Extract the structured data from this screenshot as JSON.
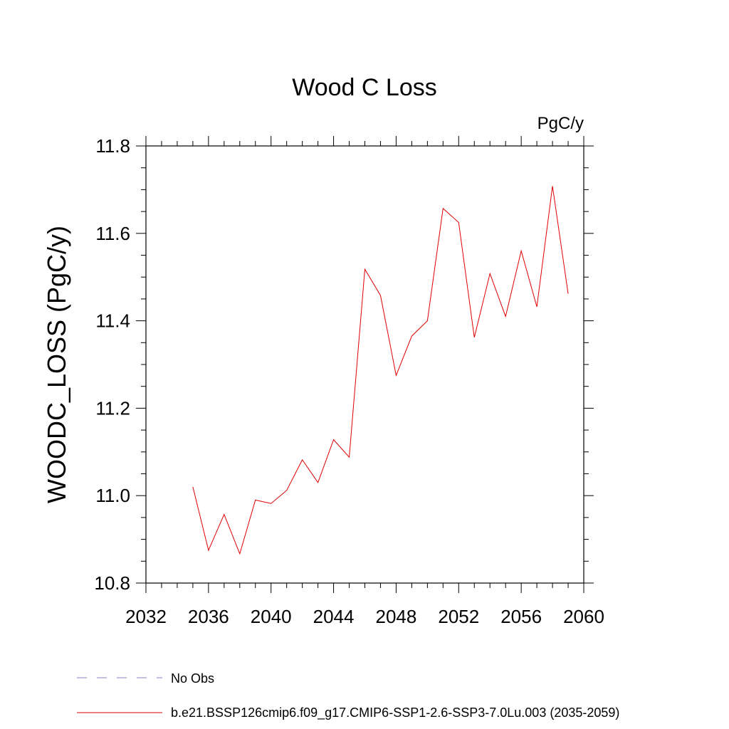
{
  "chart_data": {
    "type": "line",
    "title": "Wood C Loss",
    "units_label": "PgC/y",
    "ylabel": "WOODC_LOSS  (PgC/y)",
    "xlabel": "",
    "xlim": [
      2032,
      2060
    ],
    "ylim": [
      10.8,
      11.8
    ],
    "x_major_ticks": [
      2032,
      2036,
      2040,
      2044,
      2048,
      2052,
      2056,
      2060
    ],
    "x_minor_step": 1,
    "y_major_ticks": [
      10.8,
      11.0,
      11.2,
      11.4,
      11.6,
      11.8
    ],
    "y_tick_labels": [
      "10.8",
      "11.0",
      "11.2",
      "11.4",
      "11.6",
      "11.8"
    ],
    "y_minor_step": 0.05,
    "grid": false,
    "legend_position": "bottom",
    "legend": [
      {
        "label": "No Obs",
        "color": "#8080c0",
        "style": "dashed"
      },
      {
        "label": "b.e21.BSSP126cmip6.f09_g17.CMIP6-SSP1-2.6-SSP3-7.0Lu.003 (2035-2059)",
        "color": "#e00000",
        "style": "solid"
      }
    ],
    "series": [
      {
        "color": "#e00000",
        "x": [
          2035,
          2036,
          2037,
          2038,
          2039,
          2040,
          2041,
          2042,
          2043,
          2044,
          2045,
          2046,
          2047,
          2048,
          2049,
          2050,
          2051,
          2052,
          2053,
          2054,
          2055,
          2056,
          2057,
          2058,
          2059
        ],
        "y": [
          11.02,
          10.875,
          10.957,
          10.867,
          10.99,
          10.982,
          11.012,
          11.082,
          11.03,
          11.128,
          11.088,
          11.518,
          11.458,
          11.275,
          11.365,
          11.4,
          11.657,
          11.625,
          11.362,
          11.508,
          11.41,
          11.56,
          11.432,
          11.708,
          11.462
        ]
      }
    ]
  }
}
